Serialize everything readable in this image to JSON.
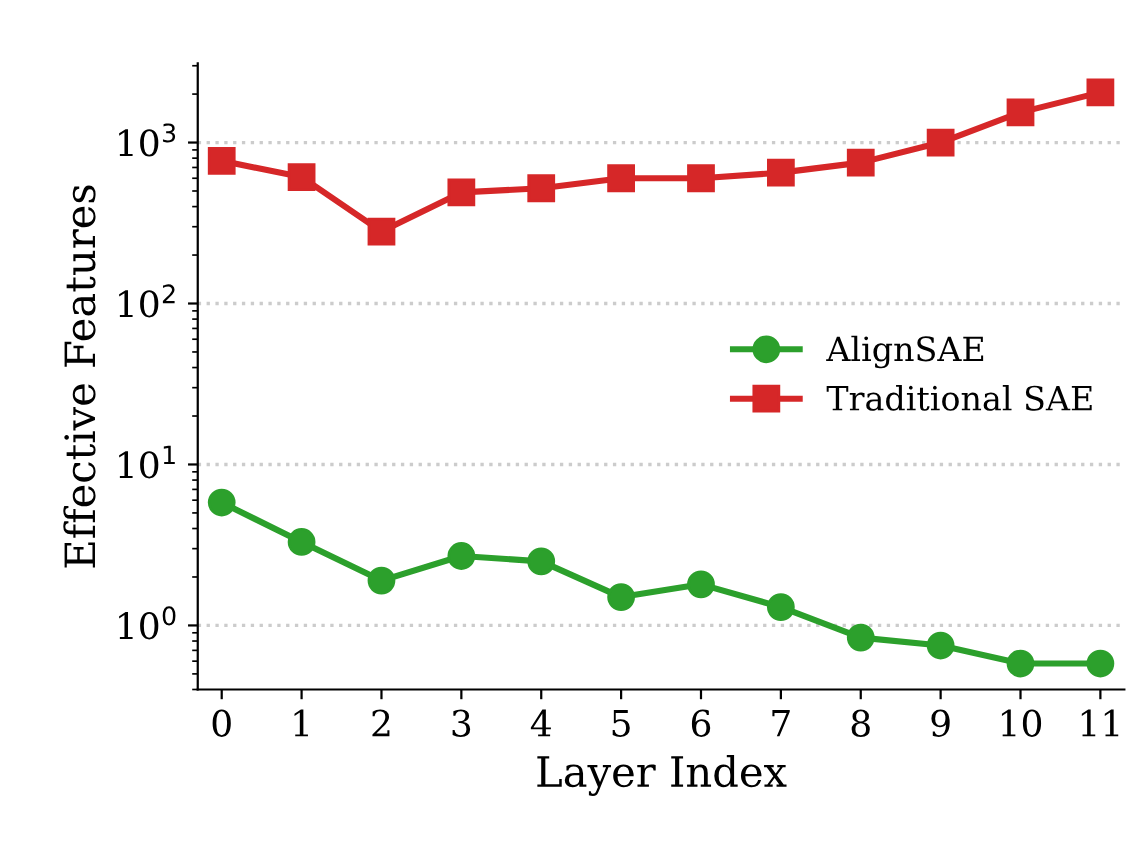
{
  "chart_data": {
    "type": "line",
    "xlabel": "Layer Index",
    "ylabel": "Effective Features",
    "categories": [
      "0",
      "1",
      "2",
      "3",
      "4",
      "5",
      "6",
      "7",
      "8",
      "9",
      "10",
      "11"
    ],
    "series": [
      {
        "name": "AlignSAE",
        "color": "#2ca02c",
        "marker": "circle",
        "values": [
          5.8,
          3.3,
          1.9,
          2.7,
          2.5,
          1.5,
          1.8,
          1.3,
          0.84,
          0.75,
          0.58,
          0.58
        ]
      },
      {
        "name": "Traditional SAE",
        "color": "#d62728",
        "marker": "square",
        "values": [
          770,
          610,
          280,
          490,
          520,
          600,
          600,
          650,
          750,
          1000,
          1540,
          2050
        ]
      }
    ],
    "log": "y",
    "ylim": [
      0.4,
      3100
    ],
    "yticks": [
      {
        "value": 1,
        "label": "10$^{0}$"
      },
      {
        "value": 10,
        "label": "10$^{1}$"
      },
      {
        "value": 100,
        "label": "10$^{2}$"
      },
      {
        "value": 1000,
        "label": "10$^{3}$"
      }
    ],
    "grid": "y",
    "legend": "center right",
    "line_style": "solid"
  }
}
